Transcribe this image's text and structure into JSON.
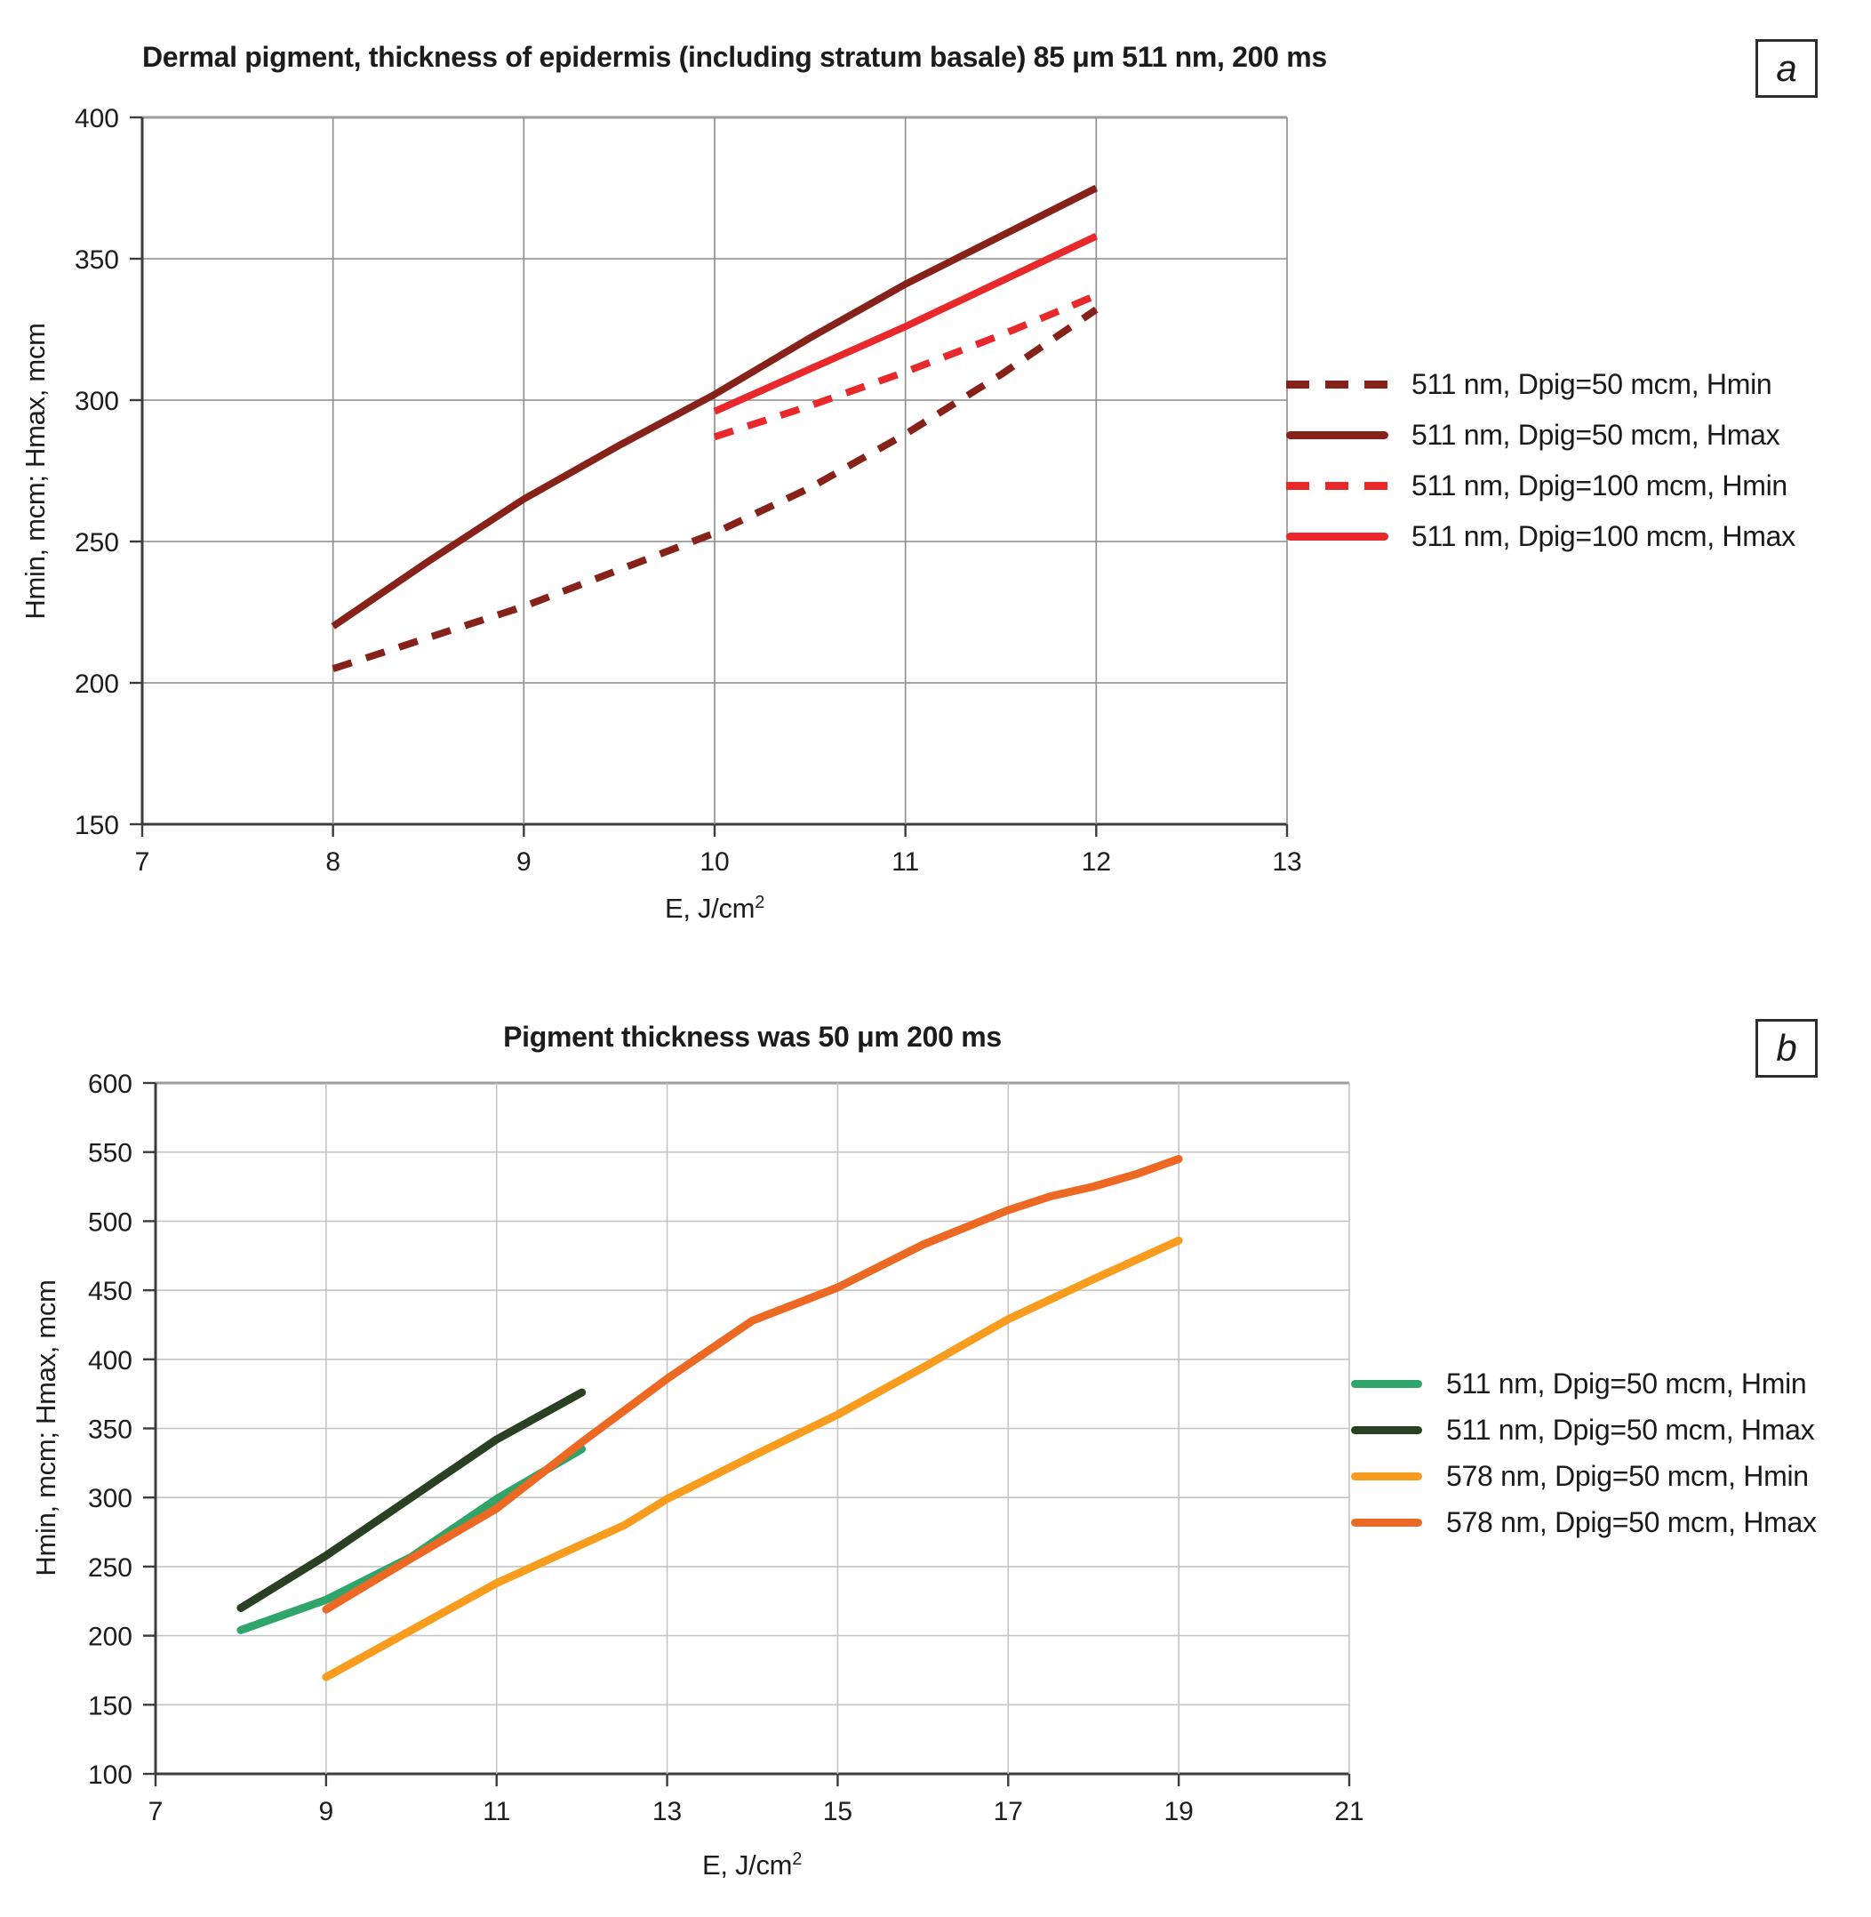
{
  "chart_data": [
    {
      "type": "line",
      "panel_label": "a",
      "title": "Dermal pigment, thickness of epidermis (including stratum basale) 85 μm 511 nm, 200 ms",
      "xlabel": "E, J/cm",
      "xlabel_sup": "2",
      "ylabel": "Hmin, mcm; Hmax, mcm",
      "xlim": [
        7,
        13
      ],
      "ylim": [
        150,
        400
      ],
      "x_ticks": [
        7,
        8,
        9,
        10,
        11,
        12,
        13
      ],
      "y_ticks": [
        150,
        200,
        250,
        300,
        350,
        400
      ],
      "grid_on": true,
      "grid_color": "#8c8c8c",
      "axis_color": "#3c3c3c",
      "top_border_color": "#9e9e9e",
      "legend_position": "right",
      "series": [
        {
          "name": "511 nm, Dpig=50 mcm, Hmin",
          "color": "#87221b",
          "dash": true,
          "x": [
            8,
            8.5,
            9,
            9.5,
            10,
            10.5,
            11,
            11.5,
            12
          ],
          "y": [
            205,
            216,
            227,
            240,
            253,
            269,
            288,
            309,
            332
          ]
        },
        {
          "name": "511 nm, Dpig=50 mcm, Hmax",
          "color": "#87221b",
          "dash": false,
          "x": [
            8,
            8.5,
            9,
            9.5,
            10,
            10.5,
            11,
            11.5,
            12
          ],
          "y": [
            220,
            243,
            265,
            284,
            302,
            322,
            341,
            358,
            375
          ]
        },
        {
          "name": "511 nm, Dpig=100 mcm, Hmin",
          "color": "#e9282b",
          "dash": true,
          "x": [
            10,
            10.5,
            11,
            11.5,
            12
          ],
          "y": [
            287,
            298,
            310,
            323,
            337
          ]
        },
        {
          "name": "511 nm, Dpig=100 mcm, Hmax",
          "color": "#e9282b",
          "dash": false,
          "x": [
            10,
            10.5,
            11,
            11.5,
            12
          ],
          "y": [
            296,
            311,
            326,
            342,
            358
          ]
        }
      ]
    },
    {
      "type": "line",
      "panel_label": "b",
      "title": "Pigment thickness was 50 μm 200 ms",
      "xlabel": "E, J/cm",
      "xlabel_sup": "2",
      "ylabel": "Hmin, mcm; Hmax, mcm",
      "xlim": [
        7,
        21
      ],
      "ylim": [
        100,
        600
      ],
      "x_ticks": [
        7,
        9,
        11,
        13,
        15,
        17,
        19,
        21
      ],
      "y_ticks": [
        100,
        150,
        200,
        250,
        300,
        350,
        400,
        450,
        500,
        550,
        600
      ],
      "grid_on": true,
      "grid_color": "#c4c4c4",
      "axis_color": "#3c3c3c",
      "top_border_color": "#9e9e9e",
      "legend_position": "right",
      "series": [
        {
          "name": "511 nm, Dpig=50 mcm, Hmin",
          "color": "#2fa56b",
          "dash": false,
          "x": [
            8,
            9,
            10,
            11,
            12
          ],
          "y": [
            204,
            226,
            257,
            299,
            335
          ]
        },
        {
          "name": "511 nm, Dpig=50 mcm, Hmax",
          "color": "#2a4023",
          "dash": false,
          "x": [
            8,
            9,
            10,
            11,
            12
          ],
          "y": [
            220,
            258,
            300,
            342,
            376
          ]
        },
        {
          "name": "578 nm, Dpig=50 mcm, Hmin",
          "color": "#f89c1e",
          "dash": false,
          "x": [
            9,
            10,
            11,
            12,
            12.5,
            13,
            14,
            15,
            16,
            17,
            18,
            19
          ],
          "y": [
            170,
            204,
            238,
            266,
            280,
            299,
            330,
            360,
            394,
            429,
            458,
            486
          ]
        },
        {
          "name": "578 nm, Dpig=50 mcm, Hmax",
          "color": "#ec6823",
          "dash": false,
          "x": [
            9,
            10,
            11,
            12,
            13,
            14,
            15,
            16,
            17,
            17.5,
            18,
            18.5,
            19
          ],
          "y": [
            219,
            256,
            292,
            340,
            386,
            428,
            452,
            483,
            508,
            518,
            525,
            534,
            545
          ]
        }
      ]
    }
  ]
}
